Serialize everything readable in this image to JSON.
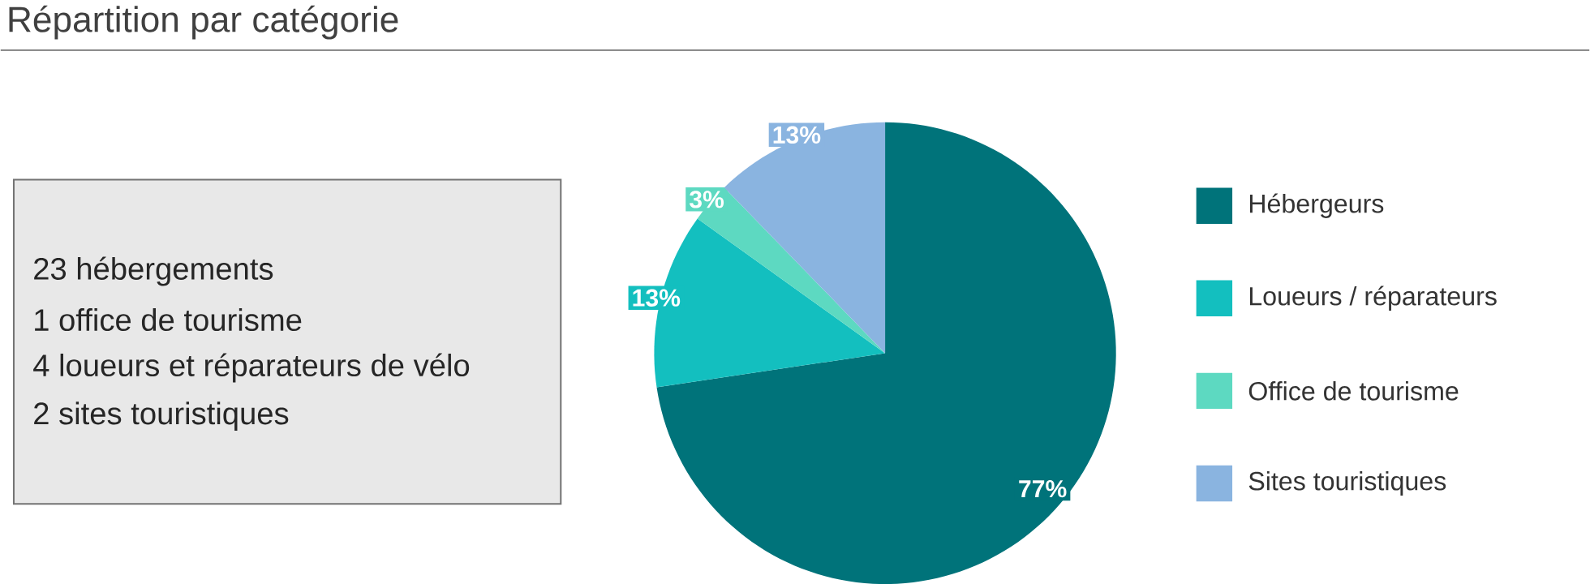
{
  "chart_data": {
    "type": "pie",
    "title": "Répartition par catégorie",
    "categories": [
      "Hébergeurs",
      "Loueurs / réparateurs",
      "Office de tourisme",
      "Sites touristiques"
    ],
    "values": [
      77,
      13,
      3,
      13
    ],
    "value_labels": [
      "77%",
      "13%",
      "3%",
      "13%"
    ],
    "colors": [
      "#00737a",
      "#13bfbf",
      "#5dd9c1",
      "#8ab4e0"
    ],
    "legend": "right",
    "annotations": [
      "23 hébergements",
      "1 office de tourisme",
      "4 loueurs et réparateurs de vélo",
      "2 sites touristiques"
    ]
  }
}
